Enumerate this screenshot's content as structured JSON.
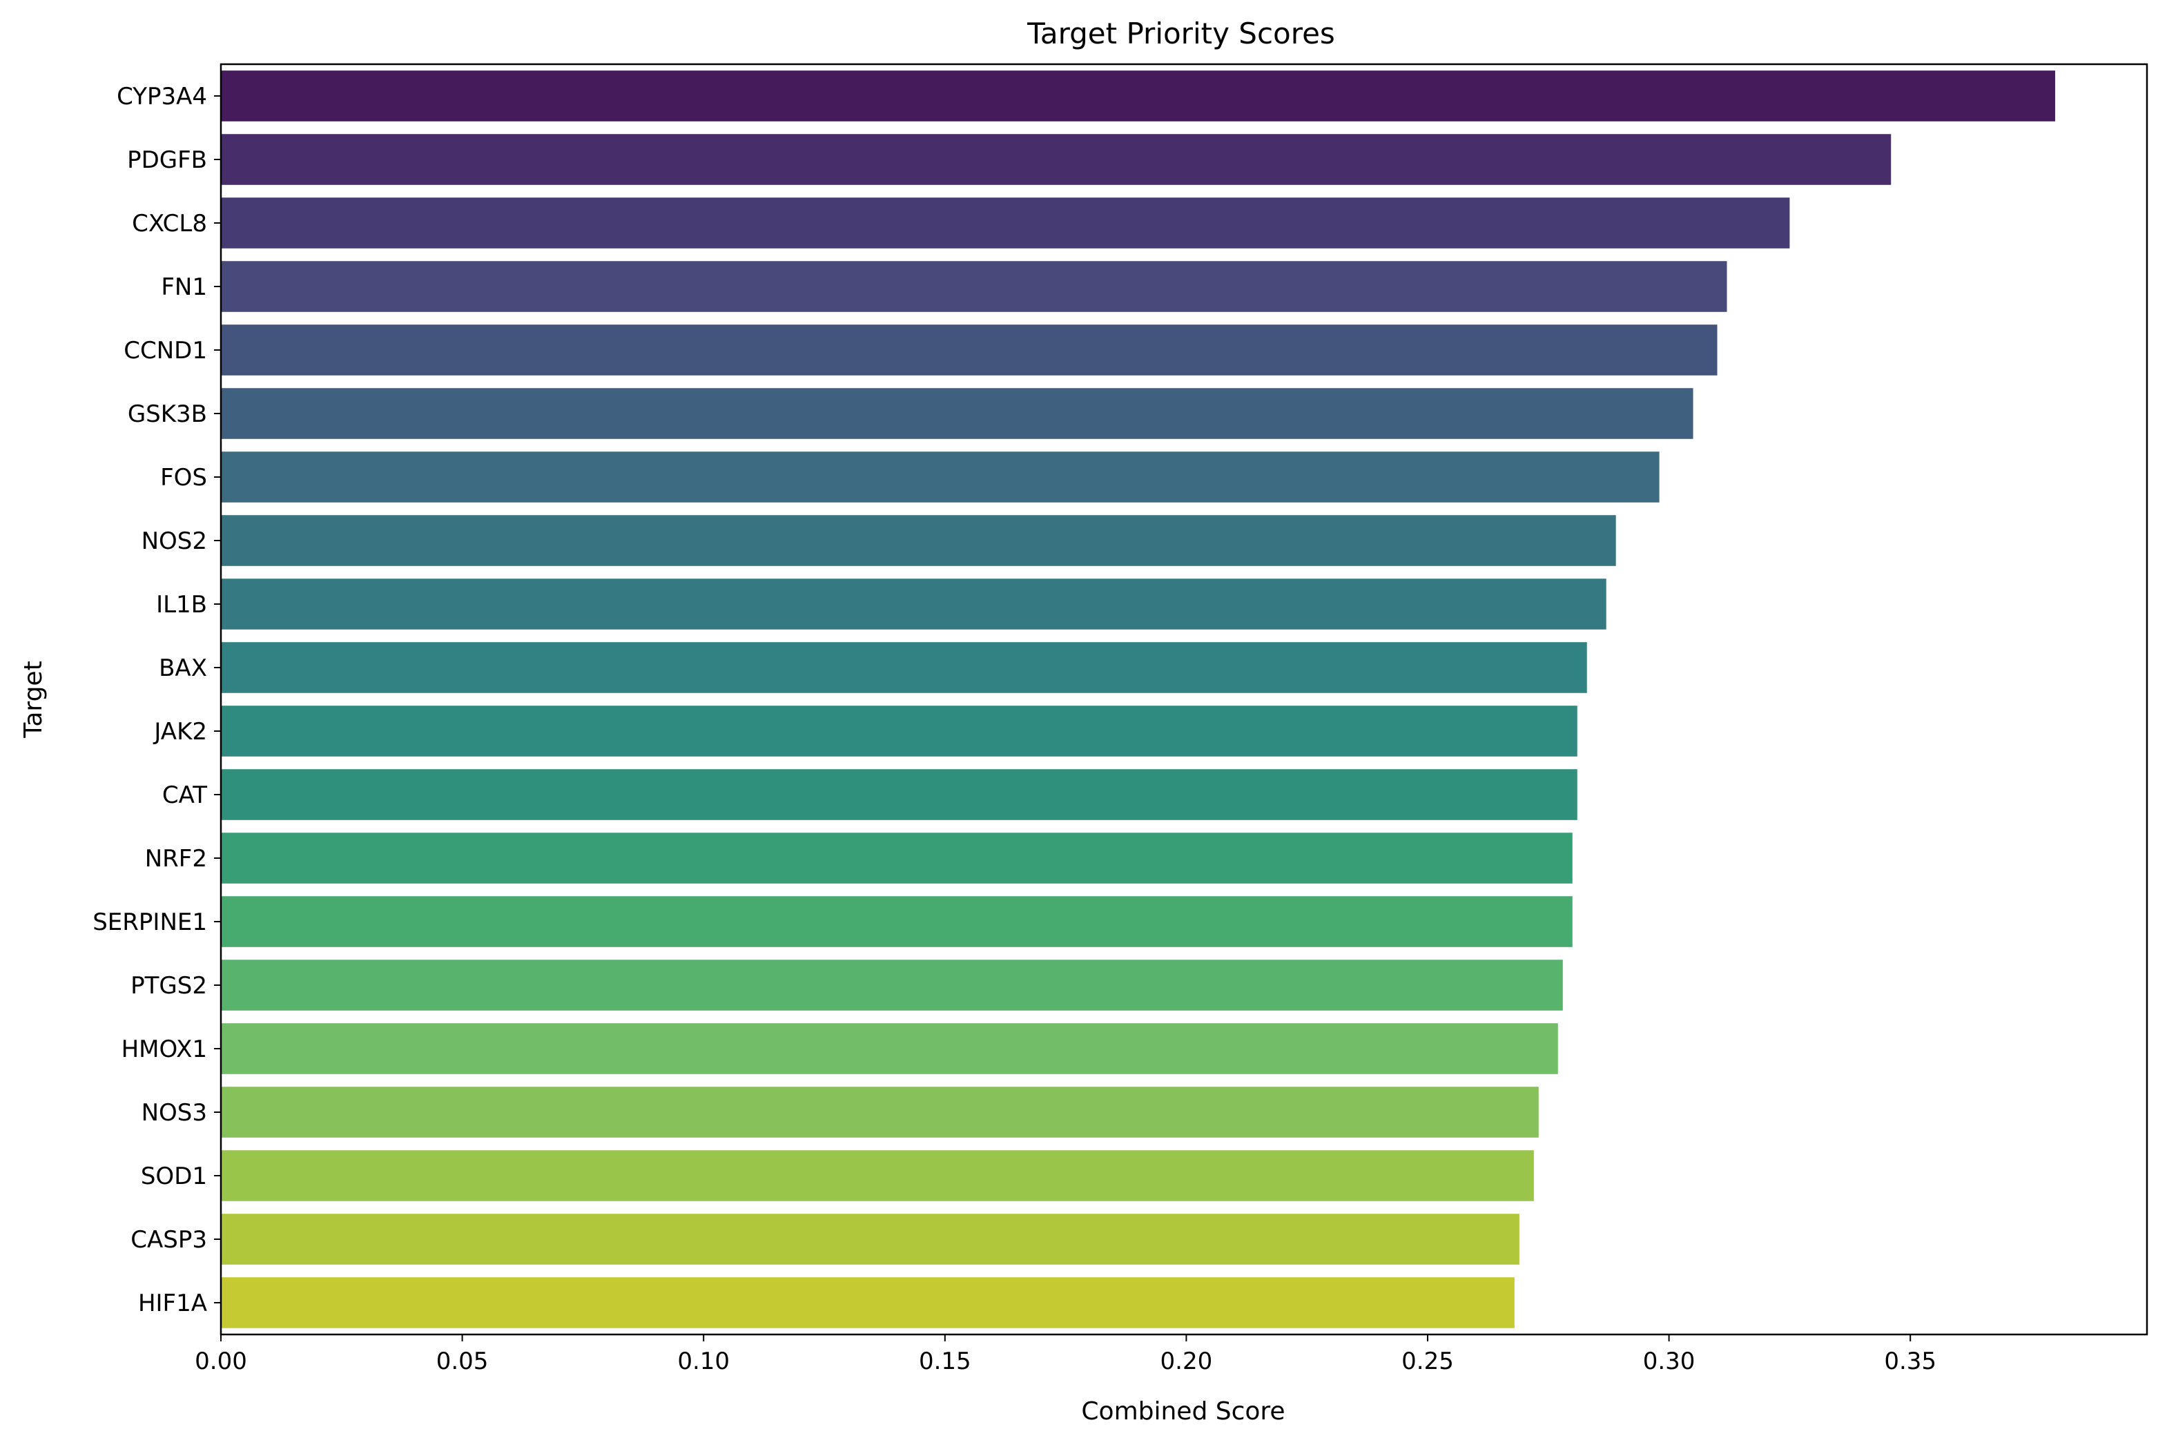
{
  "chart_data": {
    "type": "bar",
    "orientation": "horizontal",
    "title": "Target Priority Scores",
    "xlabel": "Combined Score",
    "ylabel": "Target",
    "xlim": [
      0,
      0.4
    ],
    "xticks": [
      "0.00",
      "0.05",
      "0.10",
      "0.15",
      "0.20",
      "0.25",
      "0.30",
      "0.35"
    ],
    "grid": false,
    "legend": "none",
    "colormap": "viridis",
    "categories": [
      "CYP3A4",
      "PDGFB",
      "CXCL8",
      "FN1",
      "CCND1",
      "GSK3B",
      "FOS",
      "NOS2",
      "IL1B",
      "BAX",
      "JAK2",
      "CAT",
      "NRF2",
      "SERPINE1",
      "PTGS2",
      "HMOX1",
      "NOS3",
      "SOD1",
      "CASP3",
      "HIF1A"
    ],
    "values": [
      0.38,
      0.346,
      0.325,
      0.312,
      0.31,
      0.305,
      0.298,
      0.289,
      0.287,
      0.283,
      0.281,
      0.281,
      0.28,
      0.28,
      0.278,
      0.277,
      0.273,
      0.272,
      0.269,
      0.268
    ],
    "colors": [
      "#461b5b",
      "#472e6a",
      "#463b73",
      "#474a7b",
      "#43547d",
      "#406080",
      "#3d6b81",
      "#387382",
      "#357982",
      "#318282",
      "#2f8a7f",
      "#2f917b",
      "#389e76",
      "#47aa6f",
      "#58b46c",
      "#71bd68",
      "#87c15a",
      "#9ac54b",
      "#b0c63b",
      "#c6ca32"
    ]
  }
}
